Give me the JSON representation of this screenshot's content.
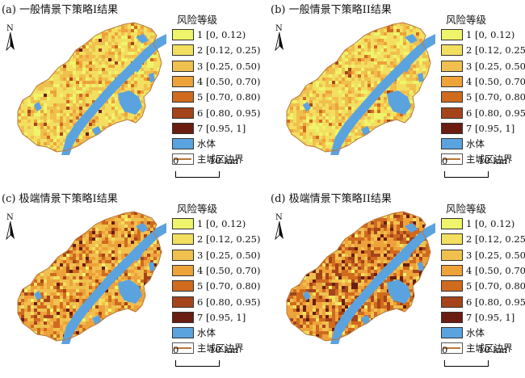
{
  "colors": {
    "water": "#5ba3df",
    "boundary": "#b7793a",
    "levels": [
      "#eef56a",
      "#f2df60",
      "#f0c04e",
      "#eea23a",
      "#cf6a1f",
      "#a5441b",
      "#6a1d10"
    ]
  },
  "legend": {
    "title": "风险等级",
    "items": [
      {
        "label": "1 [0, 0.12)",
        "color": "#eef56a"
      },
      {
        "label": "2 [0.12, 0.25)",
        "color": "#f2df60"
      },
      {
        "label": "3 [0.25, 0.50)",
        "color": "#f0c04e"
      },
      {
        "label": "4 [0.50, 0.70)",
        "color": "#eea23a"
      },
      {
        "label": "5 [0.70, 0.80)",
        "color": "#cf6a1f"
      },
      {
        "label": "6 [0.80, 0.95)",
        "color": "#a5441b"
      },
      {
        "label": "7 [0.95, 1]",
        "color": "#6a1d10"
      },
      {
        "label": "水体",
        "color": "#5ba3df"
      },
      {
        "label": "主城区边界",
        "color": "line"
      }
    ]
  },
  "north_label": "N",
  "scale": {
    "start": "0",
    "end": "10 km"
  },
  "panels": [
    {
      "title": "(a) 一般情景下策略I结果",
      "shares": [
        0.14,
        0.38,
        0.3,
        0.12,
        0.04,
        0.015,
        0.005
      ]
    },
    {
      "title": "(b) 一般情景下策略II结果",
      "shares": [
        0.16,
        0.42,
        0.28,
        0.1,
        0.03,
        0.01,
        0.0
      ]
    },
    {
      "title": "(c) 极端情景下策略I结果",
      "shares": [
        0.02,
        0.08,
        0.34,
        0.3,
        0.16,
        0.07,
        0.03
      ]
    },
    {
      "title": "(d) 极端情景下策略II结果",
      "shares": [
        0.01,
        0.04,
        0.18,
        0.3,
        0.24,
        0.16,
        0.07
      ]
    }
  ]
}
